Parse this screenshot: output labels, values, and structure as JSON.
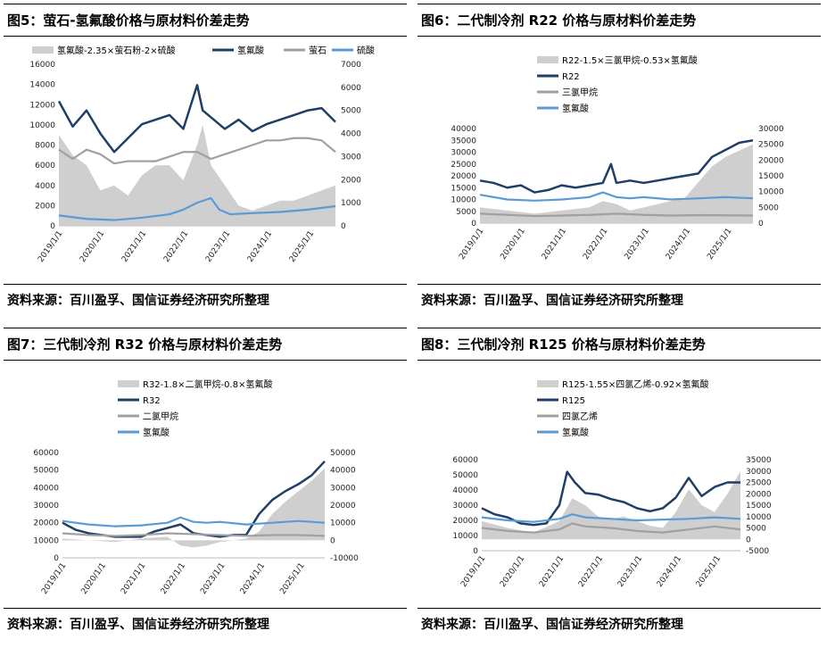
{
  "source_text": "资料来源：百川盈孚、国信证券经济研究所整理",
  "colors": {
    "spread": "#cfcfcf",
    "product": "#1f3f66",
    "material_gray": "#a0a0a0",
    "material_blue": "#5b9bd5"
  },
  "chart_data": [
    {
      "id": "fig5",
      "title": "图5：萤石-氢氟酸价格与原材料价差走势",
      "type": "line",
      "legend_position": "top",
      "x_ticks": [
        "2019/1/1",
        "2020/1/1",
        "2021/1/1",
        "2022/1/1",
        "2023/1/1",
        "2024/1/1",
        "2025/1/1"
      ],
      "left_axis": {
        "ticks": [
          "0",
          "2000",
          "4000",
          "6000",
          "8000",
          "10000",
          "12000",
          "14000",
          "16000"
        ],
        "range": [
          0,
          16000
        ]
      },
      "right_axis": {
        "ticks": [
          "0",
          "1000",
          "2000",
          "3000",
          "4000",
          "5000",
          "6000",
          "7000"
        ],
        "range": [
          0,
          7000
        ]
      },
      "legend": [
        "氢氟酸-2.35×萤石粉-2×硫酸",
        "氢氟酸",
        "萤石",
        "硫酸"
      ],
      "series": [
        {
          "name": "氢氟酸-2.35×萤石粉-2×硫酸",
          "axis": "left",
          "kind": "area",
          "role": "spread",
          "t": [
            0,
            0.05,
            0.1,
            0.15,
            0.2,
            0.25,
            0.3,
            0.35,
            0.4,
            0.45,
            0.5,
            0.52,
            0.55,
            0.6,
            0.65,
            0.7,
            0.75,
            0.8,
            0.85,
            0.9,
            0.95,
            1
          ],
          "v": [
            9000,
            7000,
            6000,
            3500,
            4000,
            3000,
            5000,
            6000,
            6000,
            4500,
            8000,
            10000,
            6000,
            4000,
            2000,
            1500,
            2000,
            2500,
            2500,
            3000,
            3500,
            4000
          ]
        },
        {
          "name": "氢氟酸",
          "axis": "right",
          "kind": "line",
          "role": "product",
          "t": [
            0,
            0.05,
            0.1,
            0.15,
            0.2,
            0.25,
            0.3,
            0.35,
            0.4,
            0.45,
            0.5,
            0.52,
            0.55,
            0.6,
            0.65,
            0.7,
            0.75,
            0.8,
            0.85,
            0.9,
            0.95,
            1
          ],
          "v": [
            5400,
            4300,
            5000,
            4000,
            3200,
            3800,
            4400,
            4600,
            4800,
            4200,
            6100,
            5000,
            4700,
            4200,
            4600,
            4100,
            4400,
            4600,
            4800,
            5000,
            5100,
            4500
          ]
        },
        {
          "name": "萤石",
          "axis": "right",
          "kind": "line",
          "role": "material_gray",
          "t": [
            0,
            0.05,
            0.1,
            0.15,
            0.2,
            0.25,
            0.3,
            0.35,
            0.4,
            0.45,
            0.5,
            0.55,
            0.6,
            0.65,
            0.7,
            0.75,
            0.8,
            0.85,
            0.9,
            0.95,
            1
          ],
          "v": [
            3300,
            2900,
            3300,
            3100,
            2700,
            2800,
            2800,
            2800,
            3000,
            3200,
            3200,
            2900,
            3100,
            3300,
            3500,
            3700,
            3700,
            3800,
            3800,
            3700,
            3200
          ]
        },
        {
          "name": "硫酸",
          "axis": "right",
          "kind": "line",
          "role": "material_blue",
          "t": [
            0,
            0.1,
            0.2,
            0.3,
            0.4,
            0.45,
            0.5,
            0.55,
            0.58,
            0.62,
            0.7,
            0.8,
            0.9,
            1
          ],
          "v": [
            450,
            300,
            250,
            350,
            500,
            700,
            1000,
            1200,
            700,
            500,
            550,
            600,
            700,
            850
          ]
        }
      ]
    },
    {
      "id": "fig6",
      "title": "图6：二代制冷剂 R22 价格与原材料价差走势",
      "type": "line",
      "legend_position": "top",
      "x_ticks": [
        "2019/1/1",
        "2020/1/1",
        "2021/1/1",
        "2022/1/1",
        "2023/1/1",
        "2024/1/1",
        "2025/1/1"
      ],
      "left_axis": {
        "ticks": [
          "0",
          "5000",
          "10000",
          "15000",
          "20000",
          "25000",
          "30000",
          "35000",
          "40000"
        ],
        "range": [
          0,
          40000
        ]
      },
      "right_axis": {
        "ticks": [
          "0",
          "5000",
          "10000",
          "15000",
          "20000",
          "25000",
          "30000"
        ],
        "range": [
          0,
          30000
        ]
      },
      "legend": [
        "R22-1.5×三氯甲烷-0.53×氢氟酸",
        "R22",
        "三氯甲烷",
        "氢氟酸"
      ],
      "series": [
        {
          "name": "R22-1.5×三氯甲烷-0.53×氢氟酸",
          "axis": "right",
          "kind": "area",
          "role": "spread",
          "t": [
            0,
            0.1,
            0.2,
            0.3,
            0.4,
            0.45,
            0.5,
            0.55,
            0.6,
            0.65,
            0.7,
            0.75,
            0.8,
            0.85,
            0.9,
            0.95,
            1
          ],
          "v": [
            5000,
            4000,
            3000,
            4000,
            5000,
            7000,
            6000,
            4000,
            5000,
            6000,
            7000,
            8000,
            13000,
            18000,
            21000,
            23000,
            25000
          ]
        },
        {
          "name": "R22",
          "axis": "left",
          "kind": "line",
          "role": "product",
          "t": [
            0,
            0.05,
            0.1,
            0.15,
            0.2,
            0.25,
            0.3,
            0.35,
            0.4,
            0.45,
            0.48,
            0.5,
            0.55,
            0.6,
            0.65,
            0.7,
            0.75,
            0.8,
            0.85,
            0.9,
            0.95,
            1
          ],
          "v": [
            18000,
            17000,
            15000,
            16000,
            13000,
            14000,
            16000,
            15000,
            16000,
            17000,
            25000,
            17000,
            18000,
            17000,
            18000,
            19000,
            20000,
            21000,
            28000,
            31000,
            34000,
            35000
          ]
        },
        {
          "name": "三氯甲烷",
          "axis": "left",
          "kind": "line",
          "role": "material_gray",
          "t": [
            0,
            0.1,
            0.2,
            0.3,
            0.4,
            0.5,
            0.6,
            0.7,
            0.8,
            0.9,
            1
          ],
          "v": [
            4000,
            3500,
            3000,
            3200,
            3500,
            4000,
            3500,
            3200,
            3400,
            3300,
            3200
          ]
        },
        {
          "name": "氢氟酸",
          "axis": "left",
          "kind": "line",
          "role": "material_blue",
          "t": [
            0,
            0.1,
            0.2,
            0.3,
            0.4,
            0.45,
            0.5,
            0.55,
            0.6,
            0.7,
            0.8,
            0.9,
            1
          ],
          "v": [
            12000,
            10000,
            9500,
            10000,
            11000,
            13000,
            11000,
            10500,
            11000,
            10000,
            10500,
            11000,
            10500
          ]
        }
      ]
    },
    {
      "id": "fig7",
      "title": "图7：三代制冷剂 R32 价格与原材料价差走势",
      "type": "line",
      "legend_position": "top",
      "x_ticks": [
        "2019/1/1",
        "2020/1/1",
        "2021/1/1",
        "2022/1/1",
        "2023/1/1",
        "2024/1/1",
        "2025/1/1"
      ],
      "left_axis": {
        "ticks": [
          "0",
          "10000",
          "20000",
          "30000",
          "40000",
          "50000",
          "60000"
        ],
        "range": [
          0,
          60000
        ]
      },
      "right_axis": {
        "ticks": [
          "-10000",
          "0",
          "10000",
          "20000",
          "30000",
          "40000",
          "50000"
        ],
        "range": [
          -10000,
          50000
        ]
      },
      "legend": [
        "R32-1.8×二氯甲烷-0.8×氢氟酸",
        "R32",
        "二氯甲烷",
        "氢氟酸"
      ],
      "series": [
        {
          "name": "R32-1.8×二氯甲烷-0.8×氢氟酸",
          "axis": "right",
          "kind": "area",
          "role": "spread",
          "t": [
            0,
            0.1,
            0.2,
            0.3,
            0.4,
            0.45,
            0.5,
            0.55,
            0.6,
            0.65,
            0.7,
            0.75,
            0.8,
            0.85,
            0.9,
            0.95,
            1
          ],
          "v": [
            1000,
            0,
            -1000,
            1000,
            2000,
            -3000,
            -4000,
            -3000,
            -1000,
            0,
            1000,
            5000,
            15000,
            22000,
            28000,
            34000,
            41000
          ]
        },
        {
          "name": "R32",
          "axis": "left",
          "kind": "line",
          "role": "product",
          "t": [
            0,
            0.05,
            0.1,
            0.15,
            0.2,
            0.25,
            0.3,
            0.35,
            0.4,
            0.45,
            0.5,
            0.55,
            0.6,
            0.65,
            0.7,
            0.75,
            0.8,
            0.85,
            0.9,
            0.95,
            1
          ],
          "v": [
            20000,
            16000,
            14000,
            13000,
            12000,
            12000,
            12000,
            15000,
            17000,
            19000,
            14000,
            13000,
            12000,
            13000,
            13000,
            25000,
            33000,
            38000,
            42000,
            47000,
            55000
          ]
        },
        {
          "name": "二氯甲烷",
          "axis": "left",
          "kind": "line",
          "role": "material_gray",
          "t": [
            0,
            0.1,
            0.2,
            0.3,
            0.4,
            0.5,
            0.6,
            0.7,
            0.8,
            0.9,
            1
          ],
          "v": [
            14000,
            13000,
            12500,
            13000,
            14000,
            13500,
            13000,
            12500,
            13000,
            13000,
            12500
          ]
        },
        {
          "name": "氢氟酸",
          "axis": "left",
          "kind": "line",
          "role": "material_blue",
          "t": [
            0,
            0.1,
            0.2,
            0.3,
            0.4,
            0.45,
            0.5,
            0.55,
            0.6,
            0.7,
            0.8,
            0.9,
            1
          ],
          "v": [
            21000,
            19000,
            18000,
            18500,
            20000,
            23000,
            20500,
            20000,
            20500,
            19000,
            20000,
            21000,
            20000
          ]
        }
      ]
    },
    {
      "id": "fig8",
      "title": "图8：三代制冷剂 R125 价格与原材料价差走势",
      "type": "line",
      "legend_position": "top",
      "x_ticks": [
        "2019/1/1",
        "2020/1/1",
        "2021/1/1",
        "2022/1/1",
        "2023/1/1",
        "2024/1/1",
        "2025/1/1"
      ],
      "left_axis": {
        "ticks": [
          "0",
          "10000",
          "20000",
          "30000",
          "40000",
          "50000",
          "60000"
        ],
        "range": [
          0,
          60000
        ]
      },
      "right_axis": {
        "ticks": [
          "-5000",
          "0",
          "5000",
          "10000",
          "15000",
          "20000",
          "25000",
          "30000",
          "35000"
        ],
        "range": [
          -5000,
          35000
        ]
      },
      "legend": [
        "R125-1.55×四氯乙烯-0.92×氢氟酸",
        "R125",
        "四氯乙烯",
        "氢氟酸"
      ],
      "series": [
        {
          "name": "R125-1.55×四氯乙烯-0.92×氢氟酸",
          "axis": "right",
          "kind": "area",
          "role": "spread",
          "t": [
            0,
            0.1,
            0.2,
            0.3,
            0.35,
            0.4,
            0.45,
            0.5,
            0.55,
            0.6,
            0.65,
            0.7,
            0.75,
            0.8,
            0.85,
            0.9,
            0.95,
            1
          ],
          "v": [
            8000,
            5000,
            3000,
            8000,
            18000,
            15000,
            10000,
            9000,
            10000,
            8000,
            6000,
            5000,
            12000,
            22000,
            15000,
            12000,
            20000,
            30000
          ]
        },
        {
          "name": "R125",
          "axis": "left",
          "kind": "line",
          "role": "product",
          "t": [
            0,
            0.05,
            0.1,
            0.15,
            0.2,
            0.25,
            0.3,
            0.33,
            0.36,
            0.4,
            0.45,
            0.5,
            0.55,
            0.6,
            0.65,
            0.7,
            0.75,
            0.8,
            0.85,
            0.9,
            0.95,
            1
          ],
          "v": [
            28000,
            24000,
            22000,
            18000,
            17000,
            18000,
            30000,
            52000,
            45000,
            38000,
            37000,
            34000,
            32000,
            28000,
            26000,
            28000,
            35000,
            48000,
            36000,
            42000,
            45000,
            45000
          ]
        },
        {
          "name": "四氯乙烯",
          "axis": "left",
          "kind": "line",
          "role": "material_gray",
          "t": [
            0,
            0.1,
            0.2,
            0.3,
            0.35,
            0.4,
            0.5,
            0.6,
            0.7,
            0.8,
            0.9,
            1
          ],
          "v": [
            15000,
            13000,
            12000,
            14000,
            18000,
            16000,
            15000,
            13000,
            12000,
            14000,
            16000,
            14000
          ]
        },
        {
          "name": "氢氟酸",
          "axis": "left",
          "kind": "line",
          "role": "material_blue",
          "t": [
            0,
            0.1,
            0.2,
            0.3,
            0.35,
            0.4,
            0.5,
            0.6,
            0.7,
            0.8,
            0.9,
            1
          ],
          "v": [
            22000,
            20000,
            19000,
            21000,
            24000,
            22000,
            21000,
            20000,
            20500,
            21000,
            22000,
            21000
          ]
        }
      ]
    }
  ]
}
